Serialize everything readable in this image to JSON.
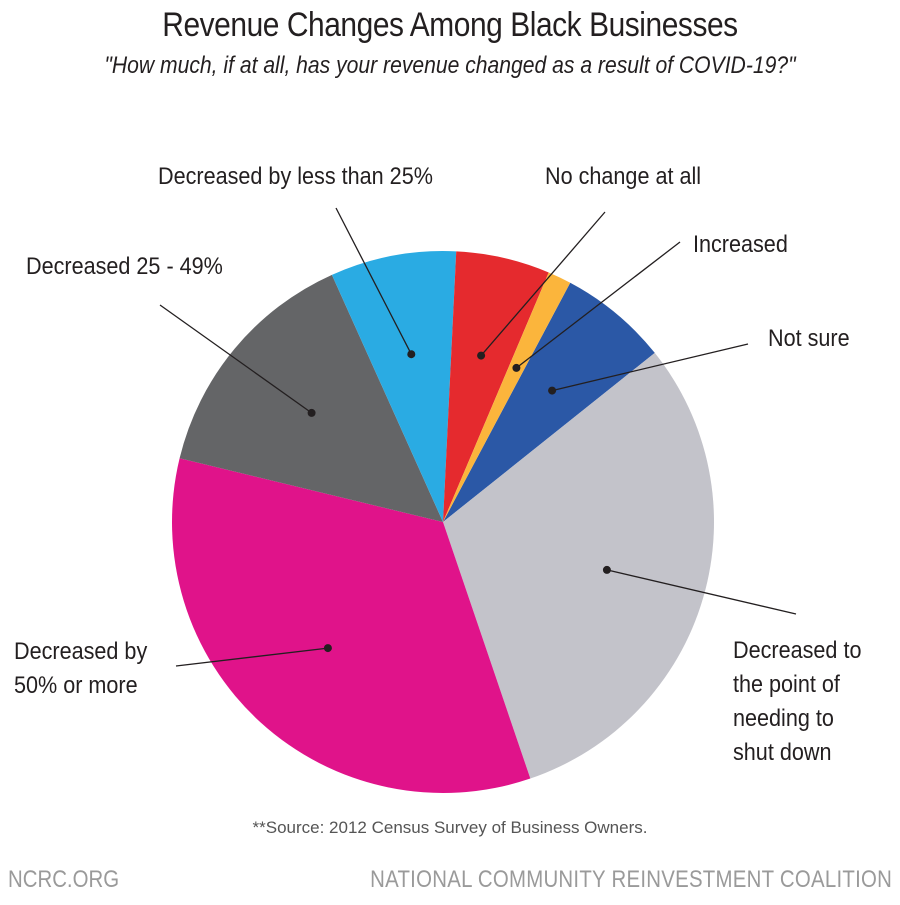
{
  "chart_data": {
    "type": "pie",
    "title": "Revenue Changes Among Black Businesses",
    "subtitle": "\"How much, if at all, has your revenue changed as a result of COVID-19?\"",
    "slices": [
      {
        "label": "Not sure",
        "label_lines": [
          "Not sure"
        ],
        "value": 6.5,
        "color": "#2b58a6"
      },
      {
        "label": "Decreased to the point of needing to shut down",
        "label_lines": [
          "Decreased to",
          "the point of",
          "needing to",
          "shut down"
        ],
        "value": 30.5,
        "color": "#c3c3ca"
      },
      {
        "label": "Decreased by 50% or more",
        "label_lines": [
          "Decreased by",
          "50% or more"
        ],
        "value": 34,
        "color": "#e0138a"
      },
      {
        "label": "Decreased 25 - 49%",
        "label_lines": [
          "Decreased 25 - 49%"
        ],
        "value": 14.5,
        "color": "#646567"
      },
      {
        "label": "Decreased by less than 25%",
        "label_lines": [
          "Decreased by less than 25%"
        ],
        "value": 7.5,
        "color": "#2aabe3"
      },
      {
        "label": "No change at all",
        "label_lines": [
          "No change at all"
        ],
        "value": 5.6,
        "color": "#e52a2e"
      },
      {
        "label": "Increased",
        "label_lines": [
          "Increased"
        ],
        "value": 1.4,
        "color": "#fbb53c"
      }
    ]
  },
  "source_note": "**Source: 2012 Census Survey of Business Owners.",
  "footer": {
    "left": "NCRC.ORG",
    "right": "NATIONAL COMMUNITY REINVESTMENT COALITION"
  }
}
